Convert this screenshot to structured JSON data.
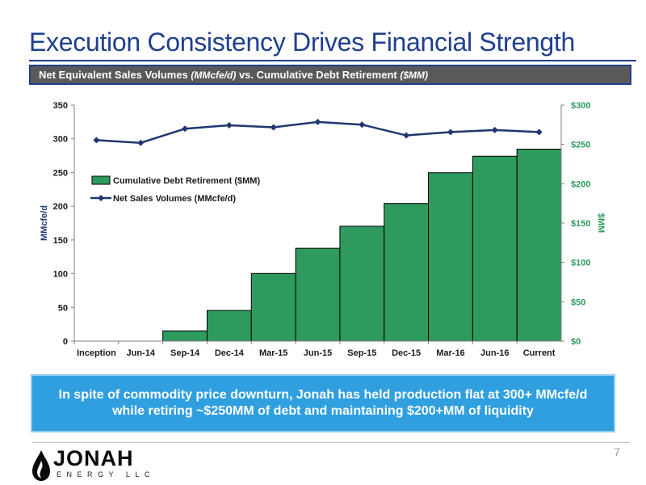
{
  "slide": {
    "title": "Execution Consistency Drives Financial Strength",
    "subtitle_main1": "Net Equivalent Sales Volumes ",
    "subtitle_italic1": "(MMcfe/d)",
    "subtitle_main2": " vs. Cumulative Debt Retirement ",
    "subtitle_italic2": "($MM)",
    "callout": "In spite of commodity price downturn, Jonah has held production flat at 300+ MMcfe/d while retiring ~$250MM of debt and maintaining $200+MM of liquidity",
    "page_number": "7",
    "logo_name": "JONAH",
    "logo_sub": "ENERGY LLC"
  },
  "colors": {
    "title_blue": "#1f3f8f",
    "bar_green": "#2e9a5e",
    "line_navy": "#1f3770",
    "right_axis_green": "#2e9a5e",
    "callout_blue": "#2f9fe0"
  },
  "chart_data": {
    "type": "bar",
    "categories": [
      "Inception",
      "Jun-14",
      "Sep-14",
      "Dec-14",
      "Mar-15",
      "Jun-15",
      "Sep-15",
      "Dec-15",
      "Mar-16",
      "Jun-16",
      "Current"
    ],
    "series": [
      {
        "name": "Cumulative Debt Retirement ($MM)",
        "type": "bar",
        "axis": "right",
        "values": [
          0,
          0,
          13,
          39,
          86,
          118,
          146,
          175,
          214,
          235,
          244
        ]
      },
      {
        "name": "Net Sales Volumes (MMcfe/d)",
        "type": "line",
        "axis": "left",
        "values": [
          298,
          294,
          315,
          320,
          317,
          325,
          321,
          305,
          310,
          313,
          310
        ]
      }
    ],
    "ylabel": "MMcfe/d",
    "y2label": "$MM",
    "ylim": [
      0,
      350
    ],
    "y2lim": [
      0,
      300
    ],
    "yticks": [
      "0",
      "50",
      "100",
      "150",
      "200",
      "250",
      "300",
      "350"
    ],
    "y2ticks": [
      "$0",
      "$50",
      "$100",
      "$150",
      "$200",
      "$250",
      "$300"
    ],
    "legend_position": "upper-left",
    "grid": false
  }
}
